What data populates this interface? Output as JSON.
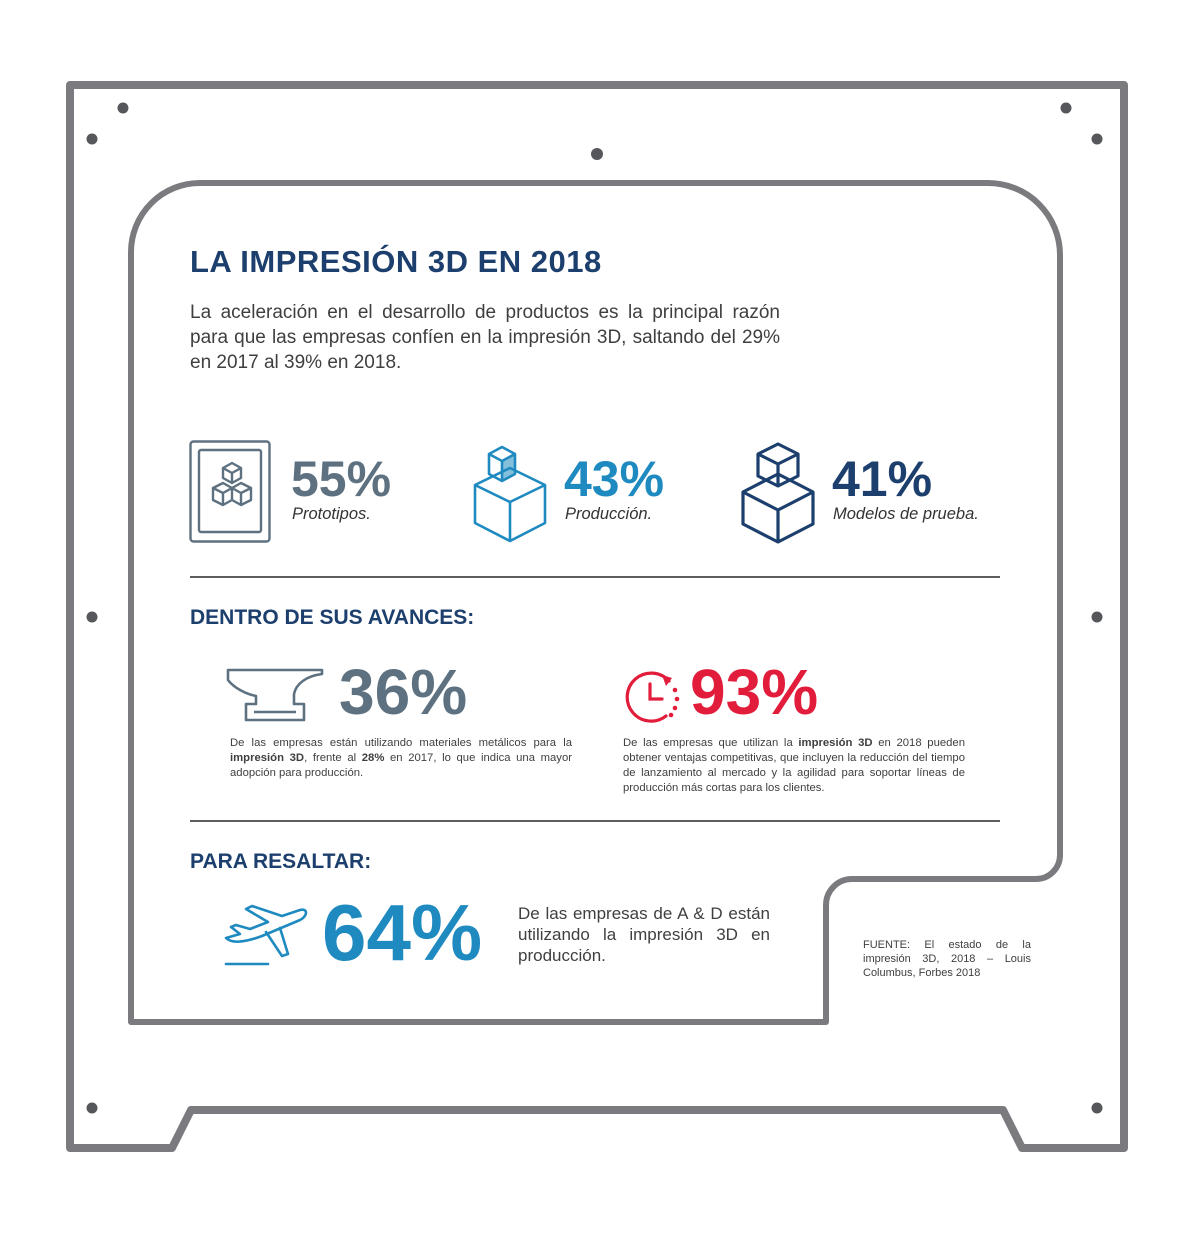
{
  "colors": {
    "frame": "#7b7b7f",
    "navy": "#1d3f6e",
    "slate": "#5d7181",
    "blue": "#1f8ac0",
    "red": "#e21d3c",
    "rule": "#5e5e5e"
  },
  "header": {
    "title": "LA IMPRESIÓN 3D EN 2018",
    "intro": "La aceleración en el desarrollo de productos es la principal razón para que las empresas confíen en la impresión 3D, saltando del 29% en 2017 al 39% en 2018."
  },
  "stats": [
    {
      "value": "55%",
      "caption": "Prototipos.",
      "icon": "framed-cubes-icon",
      "color": "#5d7181"
    },
    {
      "value": "43%",
      "caption": "Producción.",
      "icon": "printed-cube-icon",
      "color": "#1f8ac0"
    },
    {
      "value": "41%",
      "caption": "Modelos de prueba.",
      "icon": "stacked-cubes-icon",
      "color": "#1d3f6e"
    }
  ],
  "advances": {
    "heading": "DENTRO DE SUS AVANCES:",
    "left": {
      "value": "36%",
      "icon": "anvil-icon",
      "text_a": "De las empresas están utilizando materiales metálicos para la ",
      "bold_a": "impresión 3D",
      "text_b": ", frente al ",
      "bold_b": "28%",
      "text_c": " en 2017, lo que indica una mayor adopción para producción."
    },
    "right": {
      "value": "93%",
      "icon": "clock-refresh-icon",
      "text_a": "De las empresas que utilizan la ",
      "bold_a": "impresión 3D",
      "text_b": " en 2018 pueden obtener ventajas competitivas, que incluyen la reducción del tiempo de lanzamiento al mercado y la agilidad para soportar líneas de producción más cortas para los clientes."
    }
  },
  "highlight": {
    "heading": "PARA RESALTAR:",
    "value": "64%",
    "icon": "airplane-takeoff-icon",
    "text": "De las empresas de A & D están utilizando la impresión 3D en producción."
  },
  "source": "FUENTE: El estado de la impresión 3D, 2018 – Louis Columbus, Forbes 2018"
}
